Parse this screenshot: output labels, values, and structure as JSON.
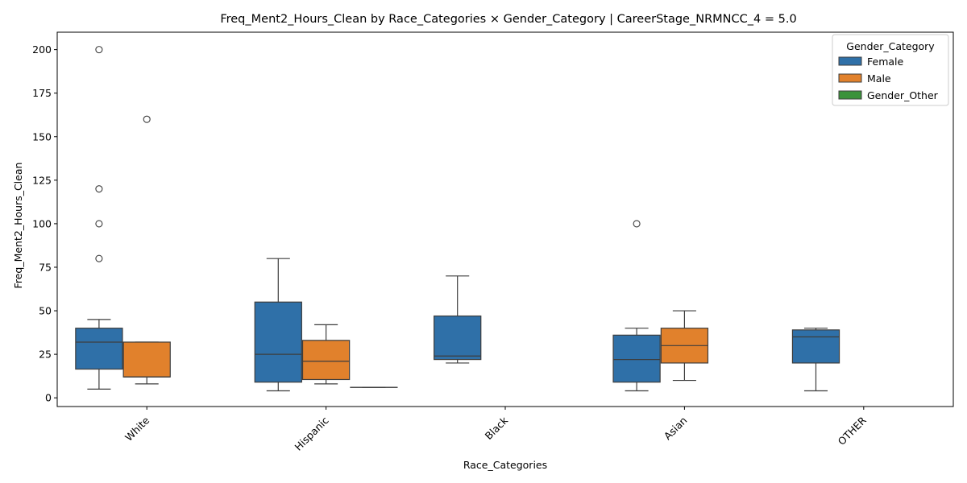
{
  "chart_data": {
    "type": "box",
    "title": "Freq_Ment2_Hours_Clean by Race_Categories × Gender_Category | CareerStage_NRMNCC_4 = 5.0",
    "xlabel": "Race_Categories",
    "ylabel": "Freq_Ment2_Hours_Clean",
    "ylim": [
      -5,
      210
    ],
    "yticks": [
      "0",
      "25",
      "50",
      "75",
      "100",
      "125",
      "150",
      "175",
      "200"
    ],
    "categories": [
      "White",
      "Hispanic",
      "Black",
      "Asian",
      "OTHER"
    ],
    "legend": {
      "title": "Gender_Category",
      "position": "top-right",
      "entries": [
        "Female",
        "Male",
        "Gender_Other"
      ]
    },
    "series": [
      {
        "name": "Female",
        "color": "#2f70a8",
        "boxes": [
          {
            "category": "White",
            "whisker_low": 5,
            "q1": 16.5,
            "median": 32,
            "q3": 40,
            "whisker_high": 45,
            "outliers": [
              80,
              100,
              120,
              200
            ]
          },
          {
            "category": "Hispanic",
            "whisker_low": 4,
            "q1": 9,
            "median": 25,
            "q3": 55,
            "whisker_high": 80,
            "outliers": []
          },
          {
            "category": "Black",
            "whisker_low": 20,
            "q1": 22,
            "median": 24,
            "q3": 47,
            "whisker_high": 70,
            "outliers": []
          },
          {
            "category": "Asian",
            "whisker_low": 4,
            "q1": 9,
            "median": 22,
            "q3": 36,
            "whisker_high": 40,
            "outliers": [
              100
            ]
          },
          {
            "category": "OTHER",
            "whisker_low": 4,
            "q1": 20,
            "median": 35,
            "q3": 39,
            "whisker_high": 40,
            "outliers": []
          }
        ]
      },
      {
        "name": "Male",
        "color": "#e1812c",
        "boxes": [
          {
            "category": "White",
            "whisker_low": 8,
            "q1": 12,
            "median": 12,
            "q3": 32,
            "whisker_high": 32,
            "outliers": [
              160
            ]
          },
          {
            "category": "Hispanic",
            "whisker_low": 8,
            "q1": 10.5,
            "median": 21,
            "q3": 33,
            "whisker_high": 42,
            "outliers": []
          },
          {
            "category": "Asian",
            "whisker_low": 10,
            "q1": 20,
            "median": 30,
            "q3": 40,
            "whisker_high": 50,
            "outliers": []
          }
        ]
      },
      {
        "name": "Gender_Other",
        "color": "#3a923a",
        "boxes": [
          {
            "category": "Hispanic",
            "whisker_low": 6,
            "q1": 6,
            "median": 6,
            "q3": 6,
            "whisker_high": 6,
            "outliers": []
          }
        ]
      }
    ]
  }
}
